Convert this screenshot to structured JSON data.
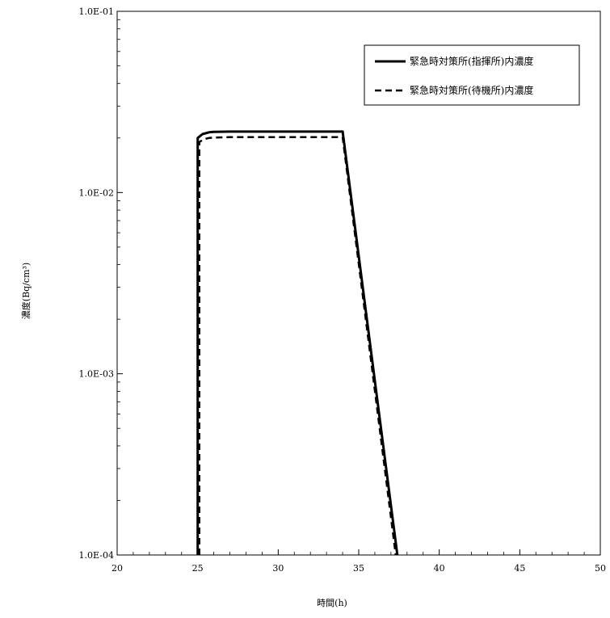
{
  "chart_data": {
    "type": "line",
    "title": "",
    "xlabel": "時間(h)",
    "ylabel": "濃度(Bq/cm³)",
    "xlim": [
      20,
      50
    ],
    "ylim": [
      0.0001,
      0.1
    ],
    "yscale": "log",
    "grid": false,
    "legend_position": "top-right",
    "x_ticks": [
      20,
      25,
      30,
      35,
      40,
      45,
      50
    ],
    "x_tick_labels": [
      "20",
      "25",
      "30",
      "35",
      "40",
      "45",
      "50"
    ],
    "y_ticks": [
      0.0001,
      0.001,
      0.01,
      0.1
    ],
    "y_tick_labels": [
      "1.0E-04",
      "1.0E-03",
      "1.0E-02",
      "1.0E-01"
    ],
    "series": [
      {
        "name": "緊急時対策所(指揮所)内濃度",
        "style": "solid",
        "color": "#000000",
        "points": [
          [
            25.0,
            0.0001
          ],
          [
            25.0,
            0.02
          ],
          [
            25.3,
            0.021
          ],
          [
            25.7,
            0.0215
          ],
          [
            26.0,
            0.0216
          ],
          [
            27.0,
            0.0217
          ],
          [
            30.0,
            0.0217
          ],
          [
            34.0,
            0.0217
          ],
          [
            37.4,
            0.0001
          ]
        ]
      },
      {
        "name": "緊急時対策所(待機所)内濃度",
        "style": "dashed",
        "color": "#000000",
        "points": [
          [
            25.1,
            0.0001
          ],
          [
            25.1,
            0.019
          ],
          [
            25.4,
            0.0197
          ],
          [
            25.7,
            0.02
          ],
          [
            26.0,
            0.0201
          ],
          [
            27.0,
            0.0202
          ],
          [
            30.0,
            0.0202
          ],
          [
            34.0,
            0.0202
          ],
          [
            37.3,
            0.0001
          ]
        ]
      }
    ]
  }
}
